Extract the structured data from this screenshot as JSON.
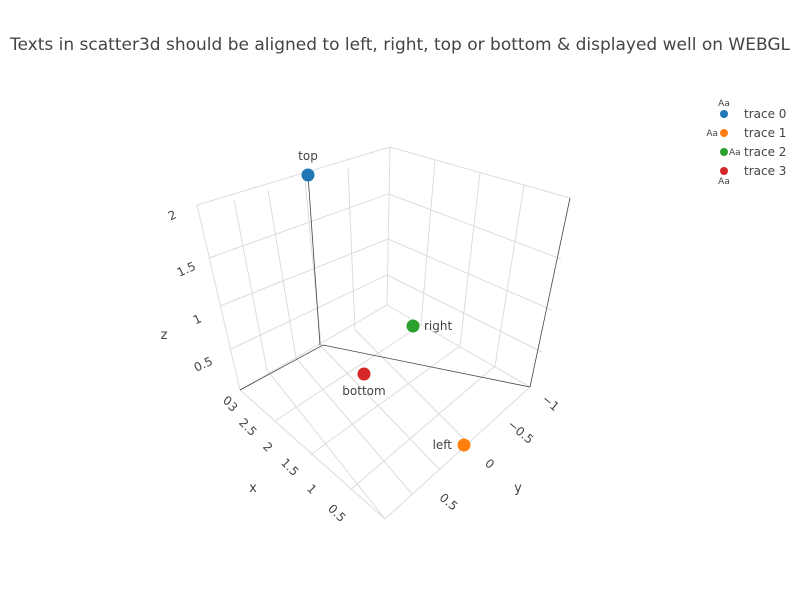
{
  "chart_data": {
    "type": "scatter",
    "title": "Texts in scatter3d should be aligned to left, right, top or bottom & displayed well on WEBGL",
    "axes": {
      "x": {
        "label": "x",
        "ticks": [
          "3",
          "2.5",
          "2",
          "1.5",
          "1",
          "0.5"
        ]
      },
      "y": {
        "label": "y",
        "ticks": [
          "−1",
          "−0.5",
          "0",
          "0.5"
        ]
      },
      "z": {
        "label": "z",
        "ticks": [
          "0",
          "0.5",
          "1",
          "1.5",
          "2"
        ]
      }
    },
    "series": [
      {
        "name": "trace 0",
        "color": "#1f77b4",
        "text": "top",
        "textposition": "top"
      },
      {
        "name": "trace 1",
        "color": "#ff7f0e",
        "text": "left",
        "textposition": "left"
      },
      {
        "name": "trace 2",
        "color": "#2ca02c",
        "text": "right",
        "textposition": "right"
      },
      {
        "name": "trace 3",
        "color": "#d62728",
        "text": "bottom",
        "textposition": "bottom"
      }
    ],
    "legend": {
      "position": "top-right",
      "marker_text": "Aa"
    },
    "grid": true
  }
}
